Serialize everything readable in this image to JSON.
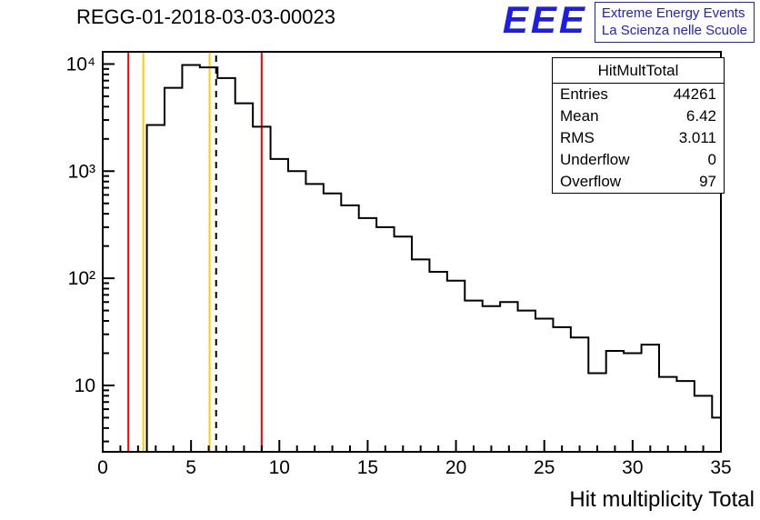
{
  "page": {
    "title": "REGG-01-2018-03-03-00023"
  },
  "logo": {
    "text": "EEE",
    "line1": "Extreme Energy Events",
    "line2": "La Scienza nelle Scuole",
    "color": "#1d1de8"
  },
  "chart_data": {
    "type": "bar",
    "subtype": "histogram-step",
    "title": "REGG-01-2018-03-03-00023",
    "xlabel": "Hit multiplicity Total",
    "ylabel": "",
    "x_range": [
      0,
      35
    ],
    "y_scale": "log",
    "y_range": [
      2.4,
      13000
    ],
    "grid": false,
    "x_major_ticks": [
      0,
      5,
      10,
      15,
      20,
      25,
      30,
      35
    ],
    "y_major_ticks": [
      {
        "value": 10,
        "label": "10"
      },
      {
        "value": 100,
        "label": "10²"
      },
      {
        "value": 1000,
        "label": "10³"
      },
      {
        "value": 10000,
        "label": "10⁴"
      }
    ],
    "bin_center_start": 0,
    "bin_width": 1,
    "counts": [
      0,
      0,
      0,
      2700,
      6000,
      9800,
      9300,
      7400,
      4300,
      2600,
      1300,
      1000,
      760,
      620,
      480,
      365,
      300,
      245,
      150,
      115,
      95,
      62,
      55,
      60,
      50,
      42,
      35,
      28,
      13,
      21,
      20,
      24,
      12,
      11,
      8,
      5
    ],
    "line_color": "#000000",
    "markers": [
      {
        "x": 1.45,
        "color": "#ff0000",
        "dash": "solid"
      },
      {
        "x": 2.3,
        "color": "#ffcc00",
        "dash": "solid"
      },
      {
        "x": 6.05,
        "color": "#ffcc00",
        "dash": "solid"
      },
      {
        "x": 6.42,
        "color": "#000000",
        "dash": "dashed"
      },
      {
        "x": 9.0,
        "color": "#ff0000",
        "dash": "solid"
      }
    ],
    "stats_box": {
      "title": "HitMultTotal",
      "rows": [
        {
          "label": "Entries",
          "value": "44261"
        },
        {
          "label": "Mean",
          "value": "6.42"
        },
        {
          "label": "RMS",
          "value": "3.011"
        },
        {
          "label": "Underflow",
          "value": "0"
        },
        {
          "label": "Overflow",
          "value": "97"
        }
      ]
    }
  }
}
